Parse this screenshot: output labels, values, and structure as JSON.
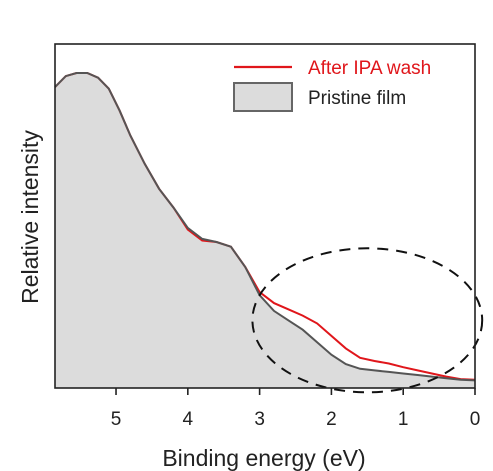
{
  "chart_data": {
    "type": "area",
    "xlabel": "Binding energy (eV)",
    "ylabel": "Relative intensity",
    "xlim": [
      5.85,
      0
    ],
    "x_reversed": true,
    "ylim": [
      0,
      1
    ],
    "y_ticks_shown": false,
    "x_ticks": [
      5,
      4,
      3,
      2,
      1,
      0
    ],
    "grid": false,
    "legend": {
      "position": "top-right"
    },
    "colors": {
      "after_wash": "#e0161b",
      "pristine_line": "#555555",
      "pristine_fill": "#dcdcdc",
      "ellipse": "#111111"
    },
    "series": [
      {
        "name": "After IPA wash",
        "style": "line",
        "x": [
          5.85,
          5.7,
          5.55,
          5.4,
          5.25,
          5.1,
          4.95,
          4.8,
          4.6,
          4.4,
          4.2,
          4.0,
          3.8,
          3.6,
          3.4,
          3.2,
          3.0,
          2.8,
          2.6,
          2.4,
          2.2,
          2.0,
          1.8,
          1.6,
          1.4,
          1.2,
          1.0,
          0.8,
          0.6,
          0.4,
          0.2,
          0.0
        ],
        "y": [
          0.955,
          0.99,
          1.0,
          1.0,
          0.985,
          0.95,
          0.88,
          0.8,
          0.71,
          0.63,
          0.57,
          0.5,
          0.465,
          0.46,
          0.445,
          0.38,
          0.3,
          0.265,
          0.245,
          0.225,
          0.2,
          0.16,
          0.12,
          0.09,
          0.08,
          0.072,
          0.06,
          0.05,
          0.04,
          0.03,
          0.022,
          0.02
        ]
      },
      {
        "name": "Pristine film",
        "style": "filled",
        "x": [
          5.85,
          5.7,
          5.55,
          5.4,
          5.25,
          5.1,
          4.95,
          4.8,
          4.6,
          4.4,
          4.2,
          4.0,
          3.8,
          3.6,
          3.4,
          3.2,
          3.0,
          2.8,
          2.6,
          2.4,
          2.2,
          2.0,
          1.8,
          1.6,
          1.4,
          1.2,
          1.0,
          0.8,
          0.6,
          0.4,
          0.2,
          0.0
        ],
        "y": [
          0.955,
          0.99,
          1.0,
          1.0,
          0.985,
          0.95,
          0.88,
          0.8,
          0.71,
          0.63,
          0.57,
          0.505,
          0.47,
          0.46,
          0.445,
          0.38,
          0.29,
          0.24,
          0.21,
          0.18,
          0.14,
          0.1,
          0.07,
          0.055,
          0.05,
          0.045,
          0.04,
          0.035,
          0.03,
          0.025,
          0.02,
          0.018
        ]
      }
    ],
    "annotations": [
      {
        "type": "dashed-ellipse",
        "center_x": 1.5,
        "center_y": 0.21,
        "rx": 1.6,
        "ry": 0.23
      }
    ]
  }
}
